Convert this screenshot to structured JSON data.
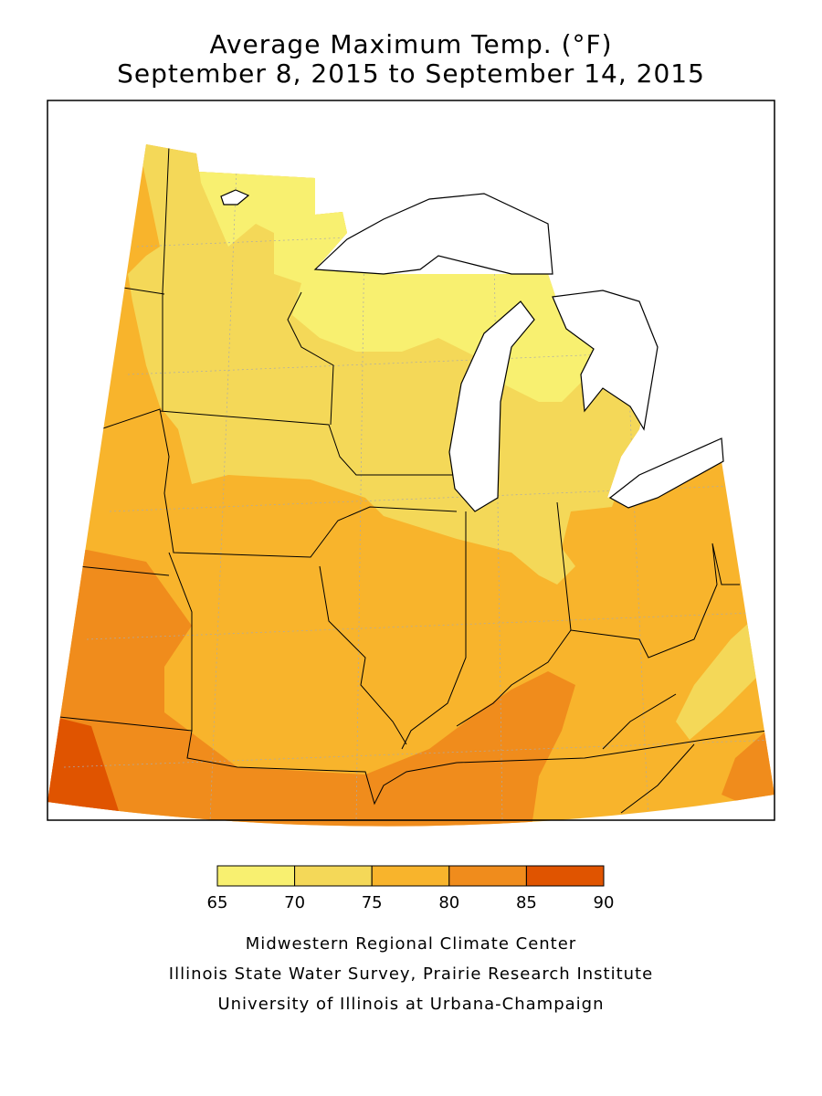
{
  "title": "Average Maximum Temp. (°F)",
  "subtitle": "September 8, 2015 to September 14, 2015",
  "legend": {
    "bins": [
      65,
      70,
      75,
      80,
      85,
      90
    ],
    "colors": [
      "#f8f070",
      "#f4d858",
      "#f8b42c",
      "#f08c1c",
      "#e05400"
    ]
  },
  "credits": [
    "Midwestern Regional Climate Center",
    "Illinois State Water Survey, Prairie Research Institute",
    "University of Illinois at Urbana-Champaign"
  ]
}
